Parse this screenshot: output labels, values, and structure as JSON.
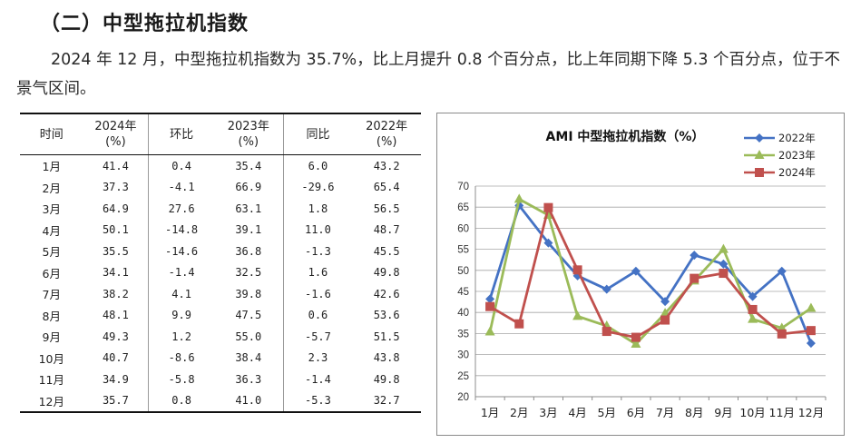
{
  "heading": "（二）中型拖拉机指数",
  "paragraph": "2024 年 12 月，中型拖拉机指数为 35.7%，比上月提升 0.8 个百分点，比上年同期下降 5.3 个百分点，位于不景气区间。",
  "table": {
    "headers": [
      {
        "line1": "时间",
        "line2": ""
      },
      {
        "line1": "2024年",
        "line2": "(%)"
      },
      {
        "line1": "环比",
        "line2": ""
      },
      {
        "line1": "2023年",
        "line2": "(%)"
      },
      {
        "line1": "同比",
        "line2": ""
      },
      {
        "line1": "2022年",
        "line2": "(%)"
      }
    ],
    "rows": [
      [
        "1月",
        "41.4",
        "0.4",
        "35.4",
        "6.0",
        "43.2"
      ],
      [
        "2月",
        "37.3",
        "-4.1",
        "66.9",
        "-29.6",
        "65.4"
      ],
      [
        "3月",
        "64.9",
        "27.6",
        "63.1",
        "1.8",
        "56.5"
      ],
      [
        "4月",
        "50.1",
        "-14.8",
        "39.1",
        "11.0",
        "48.7"
      ],
      [
        "5月",
        "35.5",
        "-14.6",
        "36.8",
        "-1.3",
        "45.5"
      ],
      [
        "6月",
        "34.1",
        "-1.4",
        "32.5",
        "1.6",
        "49.8"
      ],
      [
        "7月",
        "38.2",
        "4.1",
        "39.8",
        "-1.6",
        "42.6"
      ],
      [
        "8月",
        "48.1",
        "9.9",
        "47.5",
        "0.6",
        "53.6"
      ],
      [
        "9月",
        "49.3",
        "1.2",
        "55.0",
        "-5.7",
        "51.5"
      ],
      [
        "10月",
        "40.7",
        "-8.6",
        "38.4",
        "2.3",
        "43.8"
      ],
      [
        "11月",
        "34.9",
        "-5.8",
        "36.3",
        "-1.4",
        "49.8"
      ],
      [
        "12月",
        "35.7",
        "0.8",
        "41.0",
        "-5.3",
        "32.7"
      ]
    ]
  },
  "chart_data": {
    "type": "line",
    "title": "AMI 中型拖拉机指数（%）",
    "categories": [
      "1月",
      "2月",
      "3月",
      "4月",
      "5月",
      "6月",
      "7月",
      "8月",
      "9月",
      "10月",
      "11月",
      "12月"
    ],
    "series": [
      {
        "name": "2022年",
        "color": "#4472C4",
        "marker": "diamond",
        "values": [
          43.2,
          65.4,
          56.5,
          48.7,
          45.5,
          49.8,
          42.6,
          53.6,
          51.5,
          43.8,
          49.8,
          32.7
        ]
      },
      {
        "name": "2023年",
        "color": "#9BBB59",
        "marker": "triangle",
        "values": [
          35.4,
          66.9,
          63.1,
          39.1,
          36.8,
          32.5,
          39.8,
          47.5,
          55.0,
          38.4,
          36.3,
          41.0
        ]
      },
      {
        "name": "2024年",
        "color": "#C0504D",
        "marker": "square",
        "values": [
          41.4,
          37.3,
          64.9,
          50.1,
          35.5,
          34.1,
          38.2,
          48.1,
          49.3,
          40.7,
          34.9,
          35.7
        ]
      }
    ],
    "ylim": [
      20,
      70
    ],
    "yticks": [
      "20",
      "25",
      "30",
      "35",
      "40",
      "45",
      "50",
      "55",
      "60",
      "65",
      "70"
    ],
    "grid": true,
    "legend": "top-right"
  }
}
